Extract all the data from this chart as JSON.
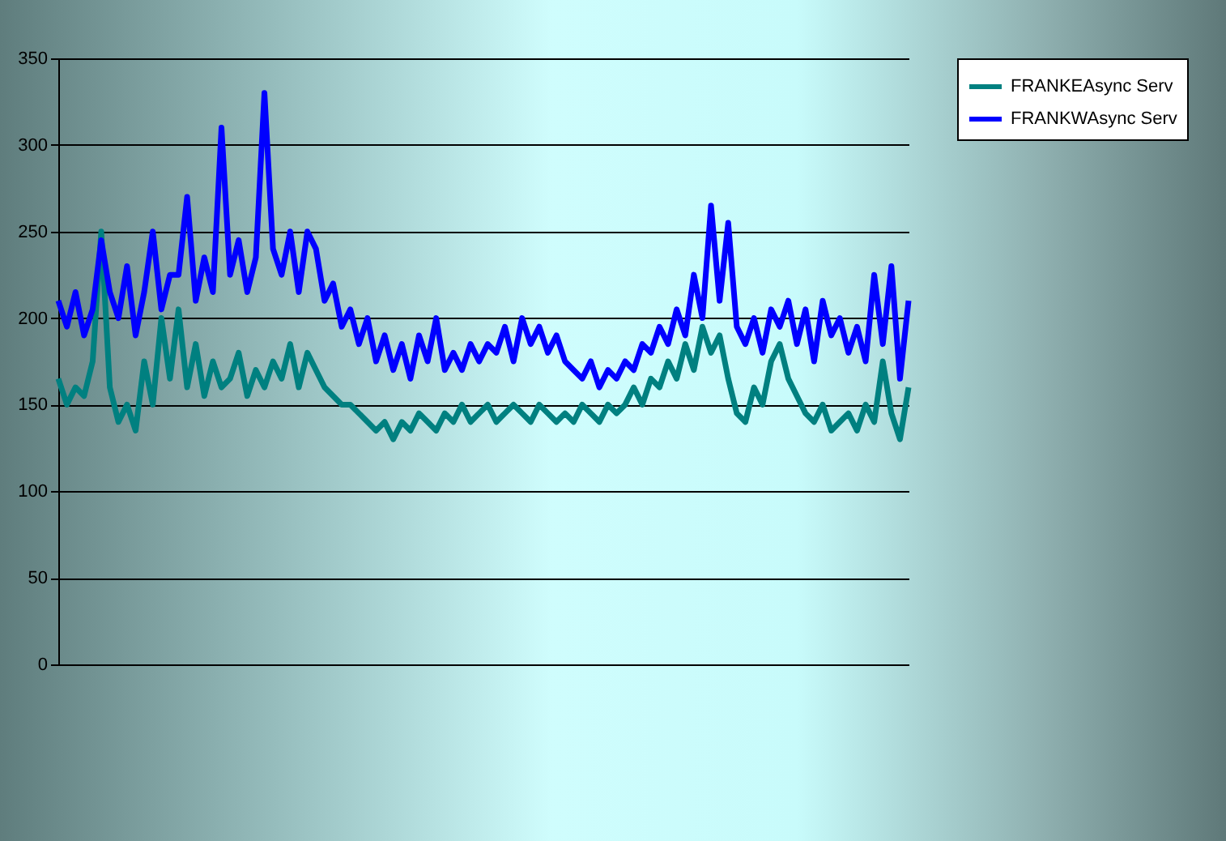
{
  "chart_data": {
    "type": "line",
    "categories": [
      null,
      null,
      null,
      null,
      null,
      null,
      null,
      null,
      null,
      null,
      null,
      null,
      null,
      null,
      null,
      null,
      null,
      null,
      null,
      null,
      null,
      null,
      null,
      null,
      null,
      null,
      null,
      null,
      null,
      null,
      null,
      null,
      null,
      null,
      null,
      null,
      null,
      null,
      null,
      null,
      null,
      null,
      null,
      null,
      null,
      null,
      null,
      null,
      null,
      null,
      null,
      null,
      null,
      null,
      null,
      null,
      null,
      null,
      null,
      null,
      null,
      null,
      null,
      null,
      null,
      null,
      null,
      null,
      null,
      null,
      null,
      null,
      null,
      null,
      null,
      null,
      null,
      null,
      null,
      null,
      null,
      null,
      null,
      null,
      null,
      null,
      null,
      null,
      null,
      null,
      null,
      null,
      null,
      null,
      null,
      null,
      null,
      null,
      null,
      null
    ],
    "series": [
      {
        "name": "FRANKEAsync Serv",
        "color": "#008080",
        "values": [
          165,
          150,
          160,
          155,
          175,
          250,
          160,
          140,
          150,
          135,
          175,
          150,
          200,
          165,
          205,
          160,
          185,
          155,
          175,
          160,
          165,
          180,
          155,
          170,
          160,
          175,
          165,
          185,
          160,
          180,
          170,
          160,
          155,
          150,
          150,
          145,
          140,
          135,
          140,
          130,
          140,
          135,
          145,
          140,
          135,
          145,
          140,
          150,
          140,
          145,
          150,
          140,
          145,
          150,
          145,
          140,
          150,
          145,
          140,
          145,
          140,
          150,
          145,
          140,
          150,
          145,
          150,
          160,
          150,
          165,
          160,
          175,
          165,
          185,
          170,
          195,
          180,
          190,
          165,
          145,
          140,
          160,
          150,
          175,
          185,
          165,
          155,
          145,
          140,
          150,
          135,
          140,
          145,
          135,
          150,
          140,
          175,
          145,
          130,
          160
        ]
      },
      {
        "name": "FRANKWAsync Serv",
        "color": "#0000ff",
        "values": [
          210,
          195,
          215,
          190,
          205,
          245,
          215,
          200,
          230,
          190,
          215,
          250,
          205,
          225,
          225,
          270,
          210,
          235,
          215,
          310,
          225,
          245,
          215,
          235,
          330,
          240,
          225,
          250,
          215,
          250,
          240,
          210,
          220,
          195,
          205,
          185,
          200,
          175,
          190,
          170,
          185,
          165,
          190,
          175,
          200,
          170,
          180,
          170,
          185,
          175,
          185,
          180,
          195,
          175,
          200,
          185,
          195,
          180,
          190,
          175,
          170,
          165,
          175,
          160,
          170,
          165,
          175,
          170,
          185,
          180,
          195,
          185,
          205,
          190,
          225,
          200,
          265,
          210,
          255,
          195,
          185,
          200,
          180,
          205,
          195,
          210,
          185,
          205,
          175,
          210,
          190,
          200,
          180,
          195,
          175,
          225,
          185,
          230,
          165,
          210
        ]
      }
    ],
    "ylim": [
      0,
      350
    ],
    "yticks": [
      0,
      50,
      100,
      150,
      200,
      250,
      300,
      350
    ],
    "grid": "y",
    "legend": "right",
    "marker": "none",
    "line_style": "solid"
  }
}
